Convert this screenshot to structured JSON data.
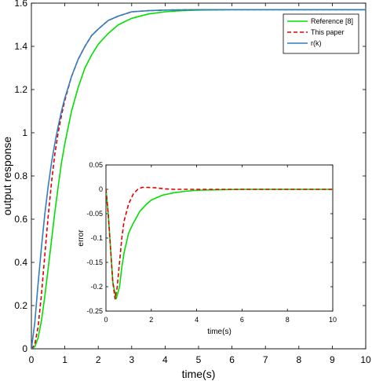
{
  "chart_data": [
    {
      "type": "line",
      "xlabel": "time(s)",
      "ylabel": "output response",
      "xlim": [
        0,
        10
      ],
      "ylim": [
        0,
        1.6
      ],
      "xticks": [
        "0",
        "1",
        "2",
        "3",
        "4",
        "5",
        "6",
        "7",
        "8",
        "9",
        "10"
      ],
      "yticks": [
        "0",
        "0.2",
        "0.4",
        "0.6",
        "0.8",
        "1",
        "1.2",
        "1.4",
        "1.6"
      ],
      "legend_position": "top-right",
      "grid": false,
      "series": [
        {
          "name": "Reference [8]",
          "color": "#00e000",
          "dash": "solid",
          "x": [
            0,
            0.1,
            0.2,
            0.3,
            0.4,
            0.5,
            0.6,
            0.7,
            0.8,
            0.9,
            1.0,
            1.2,
            1.4,
            1.6,
            1.8,
            2.0,
            2.3,
            2.6,
            3.0,
            3.5,
            4.0,
            4.5,
            5.0,
            6.0,
            7.0,
            8.0,
            9.0,
            10.0
          ],
          "y": [
            0,
            0.01,
            0.05,
            0.13,
            0.24,
            0.37,
            0.5,
            0.63,
            0.75,
            0.86,
            0.95,
            1.1,
            1.21,
            1.3,
            1.36,
            1.41,
            1.46,
            1.5,
            1.53,
            1.55,
            1.56,
            1.565,
            1.568,
            1.57,
            1.57,
            1.57,
            1.57,
            1.57
          ]
        },
        {
          "name": "This paper",
          "color": "#e00000",
          "dash": "dashed",
          "x": [
            0,
            0.1,
            0.2,
            0.3,
            0.4,
            0.5,
            0.6,
            0.7,
            0.8,
            0.9,
            1.0,
            1.2,
            1.4,
            1.6,
            1.8,
            2.0,
            2.3,
            2.6,
            3.0,
            3.5,
            4.0,
            5.0,
            6.0,
            8.0,
            10.0
          ],
          "y": [
            0,
            0.02,
            0.1,
            0.25,
            0.43,
            0.61,
            0.77,
            0.9,
            1.0,
            1.08,
            1.15,
            1.26,
            1.34,
            1.4,
            1.45,
            1.48,
            1.52,
            1.54,
            1.56,
            1.565,
            1.568,
            1.57,
            1.57,
            1.57,
            1.57
          ]
        },
        {
          "name": "r(k)",
          "color": "#2f7fc1",
          "dash": "solid",
          "x": [
            0,
            0.1,
            0.2,
            0.3,
            0.4,
            0.5,
            0.6,
            0.7,
            0.8,
            0.9,
            1.0,
            1.2,
            1.4,
            1.6,
            1.8,
            2.0,
            2.3,
            2.6,
            3.0,
            3.5,
            4.0,
            5.0,
            6.0,
            8.0,
            10.0
          ],
          "y": [
            0,
            0.12,
            0.3,
            0.47,
            0.62,
            0.75,
            0.86,
            0.95,
            1.03,
            1.1,
            1.16,
            1.26,
            1.34,
            1.4,
            1.45,
            1.48,
            1.52,
            1.54,
            1.56,
            1.565,
            1.568,
            1.57,
            1.57,
            1.57,
            1.57
          ]
        }
      ]
    },
    {
      "type": "line",
      "inset": true,
      "xlabel": "time(s)",
      "ylabel": "error",
      "xlim": [
        0,
        10
      ],
      "ylim": [
        -0.25,
        0.05
      ],
      "xticks": [
        "0",
        "2",
        "4",
        "6",
        "8",
        "10"
      ],
      "yticks": [
        "0.05",
        "0",
        "-0.05",
        "-0.1",
        "-0.15",
        "-0.2",
        "-0.25"
      ],
      "grid": false,
      "series": [
        {
          "name": "Reference [8]",
          "color": "#00e000",
          "dash": "solid",
          "x": [
            0,
            0.1,
            0.2,
            0.3,
            0.45,
            0.6,
            0.7,
            0.8,
            1.0,
            1.2,
            1.5,
            1.8,
            2.0,
            2.5,
            3.0,
            3.5,
            4.0,
            5.0,
            6.0,
            8.0,
            10.0
          ],
          "y": [
            0,
            -0.05,
            -0.12,
            -0.19,
            -0.225,
            -0.2,
            -0.16,
            -0.13,
            -0.09,
            -0.07,
            -0.045,
            -0.03,
            -0.022,
            -0.012,
            -0.007,
            -0.004,
            -0.002,
            -0.001,
            0,
            0,
            0
          ]
        },
        {
          "name": "This paper",
          "color": "#e00000",
          "dash": "dashed",
          "x": [
            0,
            0.1,
            0.2,
            0.3,
            0.4,
            0.5,
            0.6,
            0.7,
            0.8,
            1.0,
            1.2,
            1.4,
            1.6,
            1.8,
            2.2,
            2.6,
            3.0,
            4.0,
            6.0,
            8.0,
            10.0
          ],
          "y": [
            0,
            -0.05,
            -0.12,
            -0.19,
            -0.225,
            -0.2,
            -0.15,
            -0.1,
            -0.065,
            -0.03,
            -0.01,
            0.0,
            0.004,
            0.004,
            0.003,
            0.001,
            0,
            0,
            0,
            0,
            0
          ]
        }
      ]
    }
  ]
}
